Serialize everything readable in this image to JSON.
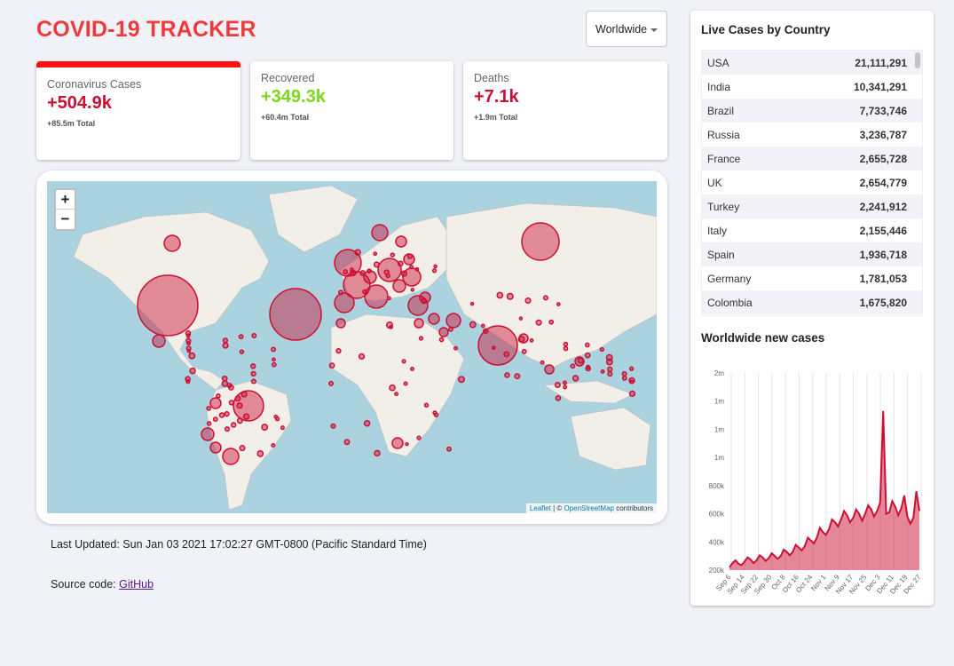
{
  "app": {
    "title": "COVID-19 TRACKER"
  },
  "selector": {
    "selected": "Worldwide"
  },
  "stats": [
    {
      "label": "Coronavirus Cases",
      "value": "+504.9k",
      "total": "+85.5m Total"
    },
    {
      "label": "Recovered",
      "value": "+349.3k",
      "total": "+60.4m Total"
    },
    {
      "label": "Deaths",
      "value": "+7.1k",
      "total": "+1.9m Total"
    }
  ],
  "map": {
    "zoom_in": "+",
    "zoom_out": "−",
    "attrib_leaflet": "Leaflet",
    "attrib_sep": " | © ",
    "attrib_osm": "OpenStreetMap",
    "attrib_suffix": " contributors"
  },
  "footer": {
    "updated": "Last Updated: Sun Jan 03 2021 17:02:27 GMT-0800 (Pacific Standard Time)",
    "source_prefix": "Source code: ",
    "source_link": "GitHub"
  },
  "live": {
    "title": "Live Cases by Country",
    "rows": [
      {
        "country": "USA",
        "cases": "21,111,291"
      },
      {
        "country": "India",
        "cases": "10,341,291"
      },
      {
        "country": "Brazil",
        "cases": "7,733,746"
      },
      {
        "country": "Russia",
        "cases": "3,236,787"
      },
      {
        "country": "France",
        "cases": "2,655,728"
      },
      {
        "country": "UK",
        "cases": "2,654,779"
      },
      {
        "country": "Turkey",
        "cases": "2,241,912"
      },
      {
        "country": "Italy",
        "cases": "2,155,446"
      },
      {
        "country": "Spain",
        "cases": "1,936,718"
      },
      {
        "country": "Germany",
        "cases": "1,781,053"
      },
      {
        "country": "Colombia",
        "cases": "1,675,820"
      }
    ]
  },
  "chart_data": {
    "type": "area",
    "title": "Worldwide new cases",
    "ytick_labels": [
      "2m",
      "1m",
      "1m",
      "1m",
      "800k",
      "600k",
      "400k",
      "200k"
    ],
    "ylim": [
      200000,
      1600000
    ],
    "xtick_labels": [
      "Sep 6",
      "Sep 14",
      "Sep 22",
      "Sep 30",
      "Oct 8",
      "Oct 16",
      "Oct 24",
      "Nov 1",
      "Nov 9",
      "Nov 17",
      "Nov 25",
      "Dec 3",
      "Dec 11",
      "Dec 19",
      "Dec 27"
    ],
    "series": [
      {
        "values": [
          220000,
          250000,
          270000,
          245000,
          235000,
          260000,
          290000,
          275000,
          250000,
          270000,
          305000,
          290000,
          265000,
          285000,
          320000,
          300000,
          280000,
          300000,
          345000,
          330000,
          305000,
          330000,
          380000,
          360000,
          340000,
          370000,
          430000,
          410000,
          390000,
          430000,
          500000,
          470000,
          450000,
          490000,
          560000,
          540000,
          510000,
          560000,
          620000,
          590000,
          540000,
          570000,
          630000,
          600000,
          550000,
          600000,
          660000,
          630000,
          580000,
          620000,
          680000,
          1330000,
          600000,
          610000,
          690000,
          650000,
          590000,
          640000,
          730000,
          580000,
          530000,
          570000,
          760000,
          620000
        ]
      }
    ],
    "color": "#cc1034",
    "fill": "rgba(204,16,52,0.5)"
  }
}
